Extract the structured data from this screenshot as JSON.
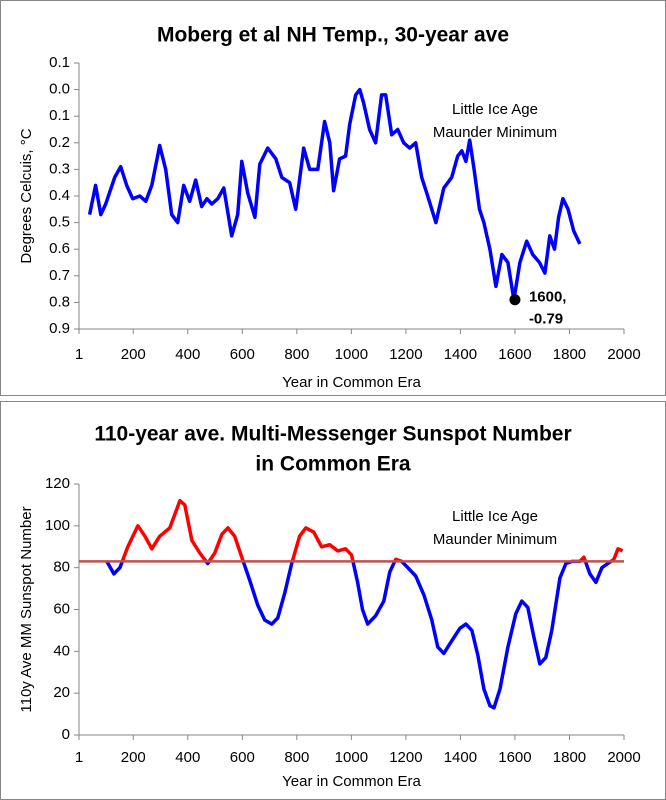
{
  "chart_data": [
    {
      "type": "line",
      "title": "Moberg et al NH Temp., 30-year ave",
      "y_label": "Degrees Celcuis, °C",
      "x_label": "Year in Common Era",
      "annotations": [
        "Little Ice Age",
        "Maunder Minimum"
      ],
      "color": "#0000ff",
      "ytick_color_above_zero": "#ff0000",
      "ytick_color_below_zero": "#0000ff",
      "xlim": [
        1,
        2000
      ],
      "xticks": [
        1,
        200,
        400,
        600,
        800,
        1000,
        1200,
        1400,
        1600,
        1800,
        2000
      ],
      "ylim": [
        -0.9,
        0.1
      ],
      "yticks": [
        0.1,
        {
          "value": 0,
          "label": "0.0"
        },
        {
          "value": -0.1,
          "label": "0.1"
        },
        {
          "value": -0.2,
          "label": "0.2"
        },
        {
          "value": -0.3,
          "label": "0.3"
        },
        {
          "value": -0.4,
          "label": "0.4"
        },
        {
          "value": -0.5,
          "label": "0.5"
        },
        {
          "value": -0.6,
          "label": "0.6"
        },
        {
          "value": -0.7,
          "label": "0.7"
        },
        {
          "value": -0.8,
          "label": "0.8"
        },
        {
          "value": -0.9,
          "label": "0.9"
        }
      ],
      "x": [
        40,
        62,
        81,
        99,
        132,
        154,
        176,
        198,
        224,
        246,
        268,
        297,
        319,
        341,
        363,
        385,
        407,
        429,
        451,
        470,
        488,
        510,
        532,
        561,
        583,
        598,
        620,
        646,
        664,
        693,
        723,
        745,
        774,
        796,
        825,
        847,
        877,
        902,
        921,
        935,
        957,
        979,
        994,
        1016,
        1031,
        1045,
        1067,
        1089,
        1111,
        1126,
        1148,
        1170,
        1192,
        1214,
        1236,
        1258,
        1280,
        1310,
        1339,
        1368,
        1390,
        1405,
        1420,
        1434,
        1450,
        1470,
        1486,
        1508,
        1530,
        1552,
        1574,
        1596,
        1618,
        1643,
        1665,
        1690,
        1710,
        1728,
        1745,
        1760,
        1776,
        1795,
        1815,
        1838
      ],
      "values": [
        -0.47,
        -0.36,
        -0.47,
        -0.43,
        -0.33,
        -0.29,
        -0.36,
        -0.41,
        -0.4,
        -0.42,
        -0.36,
        -0.21,
        -0.3,
        -0.47,
        -0.5,
        -0.36,
        -0.42,
        -0.34,
        -0.44,
        -0.41,
        -0.43,
        -0.41,
        -0.37,
        -0.55,
        -0.47,
        -0.27,
        -0.39,
        -0.48,
        -0.28,
        -0.22,
        -0.26,
        -0.33,
        -0.35,
        -0.45,
        -0.22,
        -0.3,
        -0.3,
        -0.12,
        -0.2,
        -0.38,
        -0.26,
        -0.25,
        -0.13,
        -0.02,
        0.0,
        -0.05,
        -0.15,
        -0.2,
        -0.02,
        -0.02,
        -0.17,
        -0.15,
        -0.2,
        -0.22,
        -0.2,
        -0.33,
        -0.4,
        -0.5,
        -0.37,
        -0.33,
        -0.25,
        -0.23,
        -0.27,
        -0.19,
        -0.3,
        -0.45,
        -0.5,
        -0.6,
        -0.74,
        -0.62,
        -0.65,
        -0.79,
        -0.65,
        -0.57,
        -0.62,
        -0.65,
        -0.69,
        -0.55,
        -0.6,
        -0.48,
        -0.41,
        -0.45,
        -0.53,
        -0.58
      ],
      "highlight": {
        "x": 1600,
        "value": -0.79,
        "x_label": "1600,",
        "value_label": "-0.79"
      }
    },
    {
      "type": "line",
      "title": [
        "110-year ave. Multi-Messenger Sunspot Number",
        "in Common Era"
      ],
      "y_label": "110y Ave MM Sunspot Number",
      "x_label": "Year in Common Era",
      "annotations": [
        "Little Ice Age",
        "Maunder Minimum"
      ],
      "above_color": "#ff0000",
      "below_color": "#0000ff",
      "reference_line": {
        "value": 83,
        "color": "#c0504d"
      },
      "xlim": [
        1,
        2000
      ],
      "xticks": [
        1,
        200,
        400,
        600,
        800,
        1000,
        1200,
        1400,
        1600,
        1800,
        2000
      ],
      "ylim": [
        0,
        120
      ],
      "yticks": [
        0,
        20,
        40,
        60,
        80,
        100,
        120
      ],
      "x": [
        103,
        129,
        151,
        180,
        217,
        243,
        268,
        297,
        334,
        371,
        389,
        415,
        444,
        473,
        499,
        525,
        547,
        572,
        598,
        627,
        657,
        682,
        708,
        730,
        756,
        781,
        810,
        833,
        862,
        891,
        921,
        950,
        979,
        1001,
        1023,
        1041,
        1060,
        1089,
        1119,
        1141,
        1163,
        1185,
        1207,
        1236,
        1266,
        1295,
        1317,
        1339,
        1368,
        1398,
        1420,
        1442,
        1464,
        1486,
        1508,
        1523,
        1545,
        1574,
        1603,
        1625,
        1647,
        1669,
        1691,
        1713,
        1735,
        1765,
        1787,
        1809,
        1838,
        1853,
        1875,
        1897,
        1919,
        1941,
        1963,
        1978,
        1995
      ],
      "values": [
        83,
        77,
        80,
        90,
        100,
        95,
        89,
        95,
        99,
        112,
        110,
        93,
        87,
        82,
        87,
        96,
        99,
        95,
        85,
        74,
        62,
        55,
        53,
        56,
        68,
        82,
        95,
        99,
        97,
        90,
        91,
        88,
        89,
        86,
        73,
        60,
        53,
        57,
        64,
        78,
        84,
        83,
        80,
        76,
        67,
        55,
        42,
        39,
        45,
        51,
        53,
        50,
        38,
        22,
        14,
        13,
        22,
        42,
        58,
        64,
        61,
        47,
        34,
        37,
        50,
        75,
        82,
        83,
        83,
        85,
        77,
        73,
        80,
        82,
        84,
        89,
        88
      ]
    }
  ]
}
